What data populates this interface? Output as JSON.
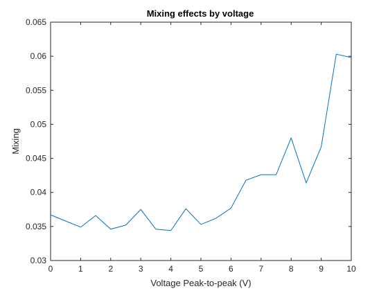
{
  "chart_data": {
    "type": "line",
    "title": "Mixing effects by voltage",
    "xlabel": "Voltage Peak-to-peak (V)",
    "ylabel": "Mixing",
    "xlim": [
      0,
      10
    ],
    "ylim": [
      0.03,
      0.065
    ],
    "xticks": [
      0,
      1,
      2,
      3,
      4,
      5,
      6,
      7,
      8,
      9,
      10
    ],
    "yticks": [
      0.03,
      0.035,
      0.04,
      0.045,
      0.05,
      0.055,
      0.06,
      0.065
    ],
    "grid": false,
    "series": [
      {
        "color": "#0072bd",
        "x": [
          0,
          0.5,
          1,
          1.5,
          2,
          2.5,
          3,
          3.5,
          4,
          4.5,
          5,
          5.5,
          6,
          6.5,
          7,
          7.5,
          8,
          8.5,
          9,
          9.5,
          10
        ],
        "y": [
          0.0367,
          0.0358,
          0.0349,
          0.0366,
          0.0346,
          0.0352,
          0.0375,
          0.0346,
          0.0344,
          0.0376,
          0.0353,
          0.0362,
          0.0377,
          0.0418,
          0.0426,
          0.0426,
          0.048,
          0.0414,
          0.0467,
          0.0603,
          0.0598
        ]
      }
    ]
  }
}
